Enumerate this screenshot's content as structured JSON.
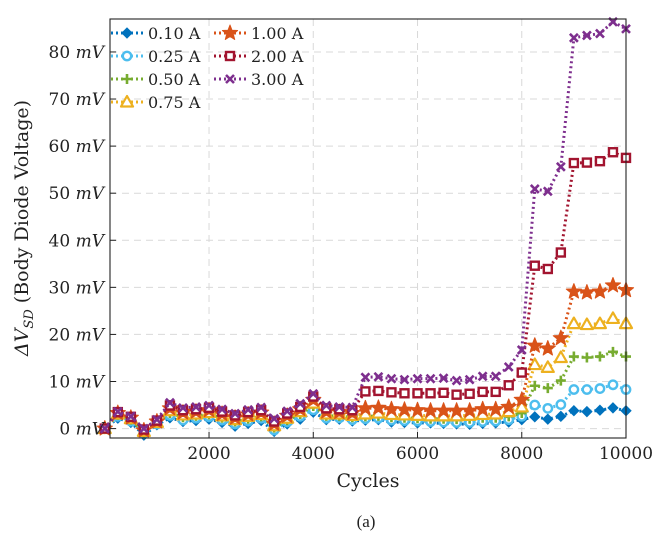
{
  "chart_data": {
    "type": "line",
    "title": "",
    "xlabel": "Cycles",
    "ylabel_parts": {
      "prefix": "ΔV",
      "subscript": "SD",
      "suffix": " (Body Diode Voltage)"
    },
    "caption": "(a)",
    "xlim": [
      100,
      10000
    ],
    "ylim": [
      -2,
      87
    ],
    "x_ticks": [
      2000,
      4000,
      6000,
      8000,
      10000
    ],
    "y_ticks": [
      {
        "value": 0,
        "num": "0",
        "unit": "mV"
      },
      {
        "value": 10,
        "num": "10",
        "unit": "mV"
      },
      {
        "value": 20,
        "num": "20",
        "unit": "mV"
      },
      {
        "value": 30,
        "num": "30",
        "unit": "mV"
      },
      {
        "value": 40,
        "num": "40",
        "unit": "mV"
      },
      {
        "value": 50,
        "num": "50",
        "unit": "mV"
      },
      {
        "value": 60,
        "num": "60",
        "unit": "mV"
      },
      {
        "value": 70,
        "num": "70",
        "unit": "mV"
      },
      {
        "value": 80,
        "num": "80",
        "unit": "mV"
      }
    ],
    "grid": true,
    "legend_position": "top-left",
    "x": [
      0,
      250,
      500,
      750,
      1000,
      1250,
      1500,
      1750,
      2000,
      2250,
      2500,
      2750,
      3000,
      3250,
      3500,
      3750,
      4000,
      4250,
      4500,
      4750,
      5000,
      5250,
      5500,
      5750,
      6000,
      6250,
      6500,
      6750,
      7000,
      7250,
      7500,
      7750,
      8000,
      8250,
      8500,
      8750,
      9000,
      9250,
      9500,
      9750,
      10000
    ],
    "series": [
      {
        "name": "0.10 A",
        "color": "#0072BD",
        "marker": "diamond",
        "values": [
          0,
          2.2,
          1.3,
          -1.4,
          0.8,
          2.3,
          1.5,
          1.7,
          2.0,
          1.3,
          0.5,
          1.1,
          1.7,
          -0.6,
          1.0,
          2.0,
          3.5,
          1.9,
          2.0,
          1.6,
          1.8,
          1.9,
          1.4,
          1.3,
          1.2,
          1.2,
          1.1,
          1.0,
          0.9,
          1.1,
          1.2,
          1.4,
          1.9,
          2.5,
          2.0,
          2.6,
          3.8,
          3.6,
          3.9,
          4.4,
          3.8
        ]
      },
      {
        "name": "0.25 A",
        "color": "#4DBEEE",
        "marker": "circle",
        "values": [
          0,
          2.6,
          1.6,
          -1.0,
          1.0,
          2.8,
          1.8,
          2.2,
          2.5,
          1.8,
          1.0,
          1.6,
          2.2,
          -0.3,
          1.4,
          2.6,
          4.0,
          2.2,
          2.3,
          1.9,
          2.1,
          2.2,
          1.8,
          1.7,
          1.6,
          1.5,
          1.4,
          1.3,
          1.3,
          1.5,
          1.6,
          1.9,
          2.6,
          5.0,
          4.3,
          5.1,
          8.3,
          8.3,
          8.5,
          9.3,
          8.3
        ]
      },
      {
        "name": "0.50 A",
        "color": "#77AC30",
        "marker": "plus",
        "values": [
          0,
          2.9,
          1.9,
          -0.8,
          1.2,
          3.3,
          2.4,
          2.7,
          3.0,
          2.3,
          1.5,
          2.1,
          2.6,
          0.2,
          1.8,
          3.1,
          4.8,
          2.7,
          2.7,
          2.4,
          2.6,
          2.7,
          2.4,
          2.3,
          2.2,
          2.1,
          2.1,
          2.0,
          2.1,
          2.3,
          2.3,
          2.6,
          3.3,
          9.1,
          8.6,
          10.2,
          15.3,
          15.1,
          15.3,
          16.3,
          15.3
        ]
      },
      {
        "name": "0.75 A",
        "color": "#EDB120",
        "marker": "triangle",
        "values": [
          0,
          3.1,
          2.1,
          -0.6,
          1.3,
          3.8,
          2.9,
          3.1,
          3.4,
          2.7,
          1.9,
          2.6,
          3.0,
          0.6,
          2.2,
          3.6,
          5.4,
          3.1,
          3.1,
          2.8,
          3.1,
          3.3,
          3.0,
          2.9,
          2.8,
          2.7,
          2.7,
          2.7,
          2.8,
          3.0,
          3.1,
          3.6,
          4.6,
          13.6,
          13.0,
          15.1,
          22.3,
          22.1,
          22.3,
          23.4,
          22.3
        ]
      },
      {
        "name": "1.00 A",
        "color": "#D95319",
        "marker": "star",
        "values": [
          0,
          3.3,
          2.3,
          -0.4,
          1.5,
          4.3,
          3.4,
          3.6,
          3.9,
          3.1,
          2.3,
          3.0,
          3.4,
          1.0,
          2.7,
          4.1,
          6.1,
          3.6,
          3.5,
          3.3,
          4.3,
          4.4,
          4.1,
          4.0,
          3.9,
          3.8,
          3.8,
          3.8,
          3.8,
          4.1,
          4.1,
          4.6,
          6.1,
          17.6,
          17.0,
          19.2,
          29.1,
          28.9,
          29.1,
          30.4,
          29.4
        ]
      },
      {
        "name": "2.00 A",
        "color": "#A2142F",
        "marker": "square",
        "values": [
          0,
          3.5,
          2.5,
          -0.2,
          1.7,
          4.9,
          3.9,
          4.1,
          4.4,
          3.6,
          2.8,
          3.5,
          3.9,
          1.5,
          3.2,
          4.6,
          6.8,
          4.3,
          4.1,
          3.9,
          7.9,
          8.0,
          7.7,
          7.5,
          7.5,
          7.5,
          7.6,
          7.2,
          7.4,
          7.8,
          7.8,
          9.2,
          11.9,
          34.6,
          33.9,
          37.4,
          56.4,
          56.5,
          56.8,
          58.7,
          57.5
        ]
      },
      {
        "name": "3.00 A",
        "color": "#7E2F8E",
        "marker": "cross",
        "values": [
          0,
          3.6,
          2.6,
          0.0,
          1.9,
          5.5,
          4.4,
          4.6,
          4.9,
          4.1,
          3.2,
          4.0,
          4.5,
          2.1,
          3.7,
          5.3,
          7.4,
          4.9,
          4.6,
          4.5,
          10.9,
          11.0,
          10.6,
          10.4,
          10.6,
          10.6,
          10.7,
          10.2,
          10.4,
          11.1,
          11.1,
          13.1,
          16.7,
          50.9,
          50.4,
          55.6,
          83.0,
          83.5,
          83.9,
          86.4,
          84.9
        ]
      }
    ]
  }
}
